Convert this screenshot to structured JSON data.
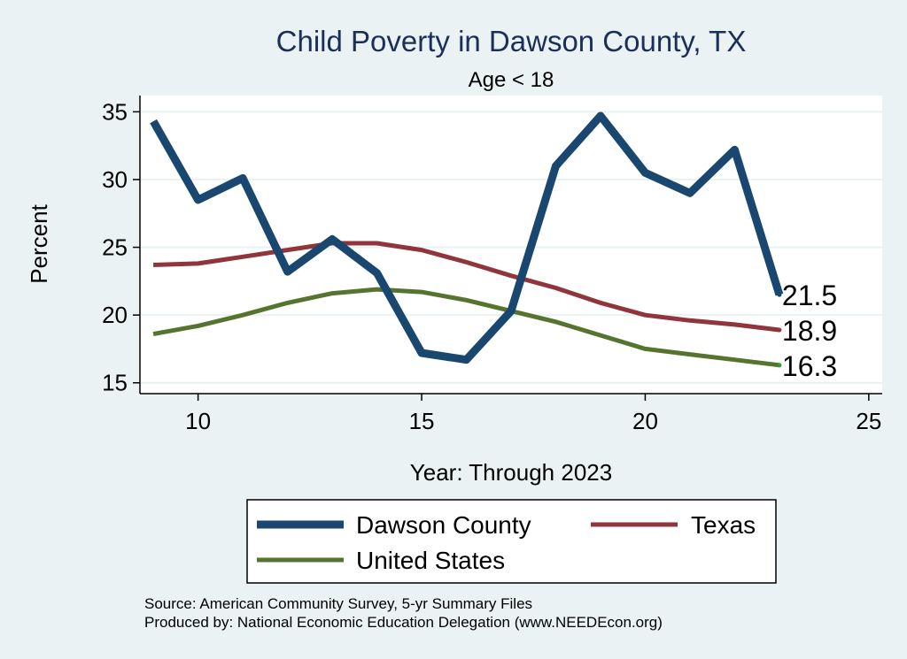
{
  "chart_data": {
    "type": "line",
    "title": "Child Poverty in Dawson County, TX",
    "subtitle": "Age < 18",
    "xlabel": "Year: Through 2023",
    "ylabel": "Percent",
    "xlim": [
      8.7,
      25.3
    ],
    "ylim": [
      14.2,
      36.2
    ],
    "xticks": [
      10,
      15,
      20,
      25
    ],
    "yticks": [
      15,
      20,
      25,
      30,
      35
    ],
    "grid": true,
    "legend_position": "bottom",
    "series": [
      {
        "name": "Dawson County",
        "color": "#1a476f",
        "x": [
          9,
          10,
          11,
          12,
          13,
          14,
          15,
          16,
          17,
          18,
          19,
          20,
          21,
          22,
          23
        ],
        "values": [
          34.3,
          28.5,
          30.1,
          23.2,
          25.6,
          23.1,
          17.2,
          16.7,
          20.3,
          31.0,
          34.7,
          30.5,
          29.0,
          32.2,
          21.5
        ],
        "end_label": "21.5"
      },
      {
        "name": "Texas",
        "color": "#90353b",
        "x": [
          9,
          10,
          11,
          12,
          13,
          14,
          15,
          16,
          17,
          18,
          19,
          20,
          21,
          22,
          23
        ],
        "values": [
          23.7,
          23.8,
          24.3,
          24.8,
          25.3,
          25.3,
          24.8,
          23.9,
          22.9,
          22.0,
          20.9,
          20.0,
          19.6,
          19.3,
          18.9
        ],
        "end_label": "18.9"
      },
      {
        "name": "United States",
        "color": "#55752f",
        "x": [
          9,
          10,
          11,
          12,
          13,
          14,
          15,
          16,
          17,
          18,
          19,
          20,
          21,
          22,
          23
        ],
        "values": [
          18.6,
          19.2,
          20.0,
          20.9,
          21.6,
          21.9,
          21.7,
          21.1,
          20.3,
          19.5,
          18.5,
          17.5,
          17.1,
          16.7,
          16.3
        ],
        "end_label": "16.3"
      }
    ]
  },
  "notes": {
    "source": "Source: American Community Survey, 5-yr Summary Files",
    "producer": "Produced by: National Economic Education Delegation (www.NEEDEcon.org)"
  }
}
